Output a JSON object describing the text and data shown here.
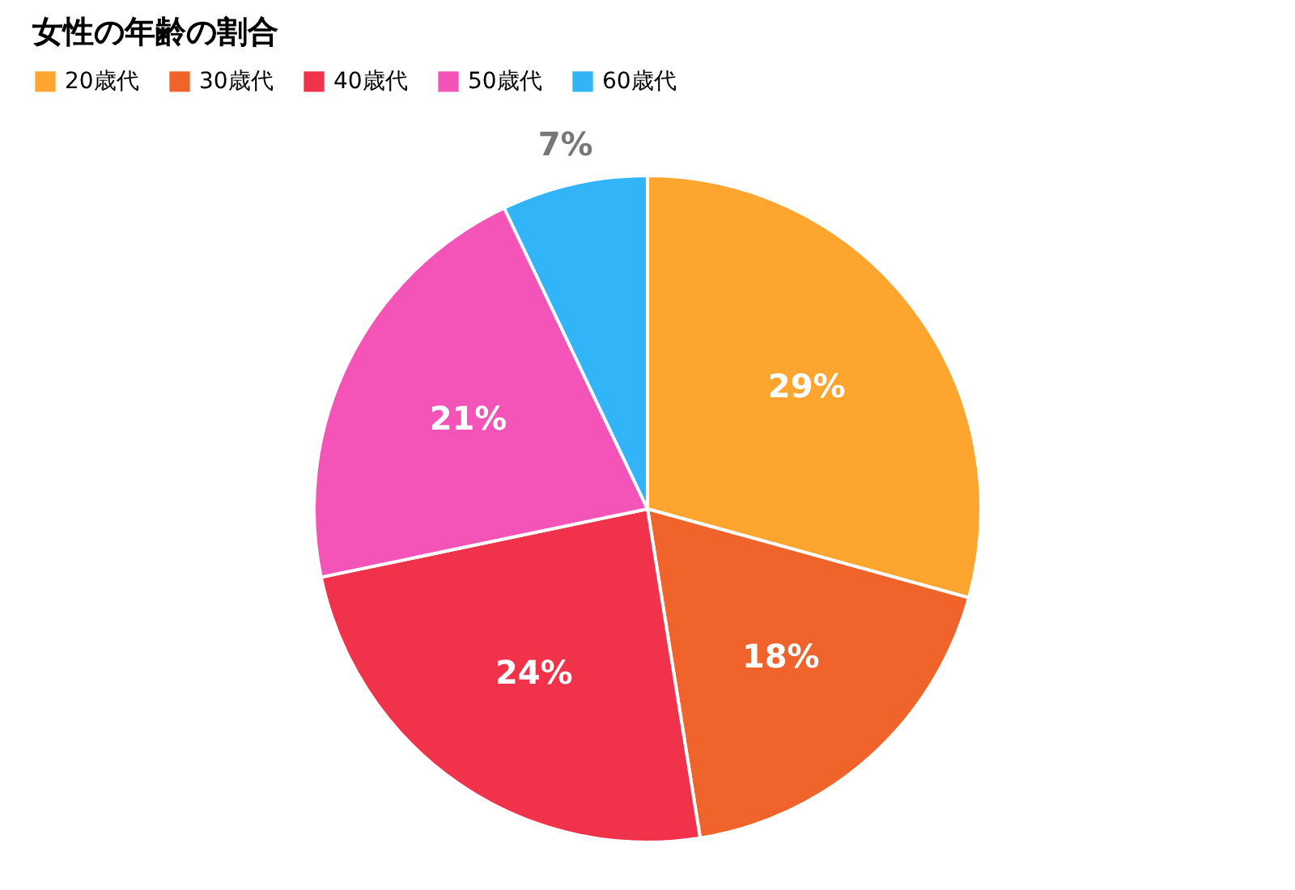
{
  "chart_data": {
    "type": "pie",
    "title": "女性の年齢の割合",
    "categories": [
      "20歳代",
      "30歳代",
      "40歳代",
      "50歳代",
      "60歳代"
    ],
    "values": [
      29,
      18,
      24,
      21,
      7
    ],
    "value_labels": [
      "29%",
      "18%",
      "24%",
      "21%",
      "7%"
    ],
    "colors": [
      "#fda52f",
      "#f0642c",
      "#f0334b",
      "#f453b7",
      "#31b4f8"
    ],
    "legend": "top left"
  }
}
